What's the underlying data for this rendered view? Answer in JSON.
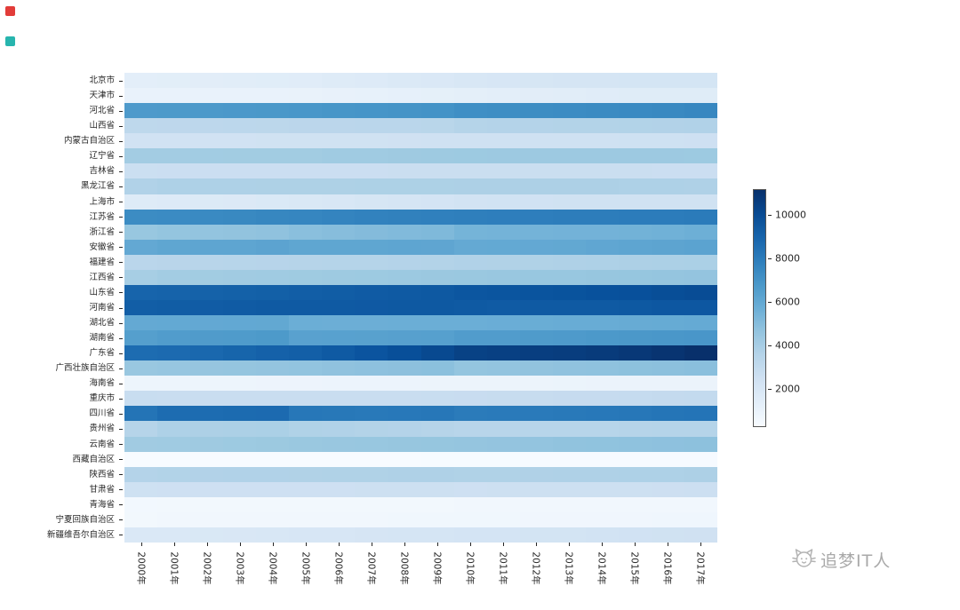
{
  "page": {
    "background": "#ffffff",
    "decorations": {
      "red_square_color": "#e23c39",
      "teal_square_color": "#27b5ae"
    },
    "watermark": {
      "text": "追梦IT人",
      "color": "#a9a9a9"
    }
  },
  "chart_data": {
    "type": "heatmap",
    "title": "",
    "xlabel": "",
    "ylabel": "",
    "colormap": "Blues",
    "grid": false,
    "legend_position": "right",
    "vmin": 262,
    "vmax": 11169,
    "colorbar_ticks": [
      2000,
      4000,
      6000,
      8000,
      10000
    ],
    "x_categories": [
      "2000年",
      "2001年",
      "2002年",
      "2003年",
      "2004年",
      "2005年",
      "2006年",
      "2007年",
      "2008年",
      "2009年",
      "2010年",
      "2011年",
      "2012年",
      "2013年",
      "2014年",
      "2015年",
      "2016年",
      "2017年"
    ],
    "y_categories": [
      "北京市",
      "天津市",
      "河北省",
      "山西省",
      "内蒙古自治区",
      "辽宁省",
      "吉林省",
      "黑龙江省",
      "上海市",
      "江苏省",
      "浙江省",
      "安徽省",
      "福建省",
      "江西省",
      "山东省",
      "河南省",
      "湖北省",
      "湖南省",
      "广东省",
      "广西壮族自治区",
      "海南省",
      "重庆市",
      "四川省",
      "贵州省",
      "云南省",
      "西藏自治区",
      "陕西省",
      "甘肃省",
      "青海省",
      "宁夏回族自治区",
      "新疆维吾尔自治区"
    ],
    "values": [
      [
        1364,
        1385,
        1423,
        1456,
        1493,
        1538,
        1601,
        1676,
        1771,
        1860,
        1962,
        2019,
        2069,
        2115,
        2152,
        2171,
        2173,
        2171
      ],
      [
        1001,
        1004,
        1007,
        1011,
        1024,
        1043,
        1075,
        1115,
        1176,
        1228,
        1299,
        1355,
        1413,
        1472,
        1517,
        1547,
        1562,
        1557
      ],
      [
        6674,
        6699,
        6735,
        6769,
        6809,
        6851,
        6898,
        6943,
        6989,
        7034,
        7194,
        7241,
        7288,
        7333,
        7384,
        7425,
        7470,
        7520
      ],
      [
        3247,
        3272,
        3294,
        3314,
        3335,
        3355,
        3375,
        3393,
        3411,
        3427,
        3574,
        3593,
        3611,
        3630,
        3648,
        3664,
        3682,
        3702
      ],
      [
        2372,
        2377,
        2384,
        2386,
        2393,
        2403,
        2415,
        2429,
        2444,
        2458,
        2472,
        2482,
        2490,
        2498,
        2505,
        2511,
        2520,
        2529
      ],
      [
        4184,
        4194,
        4203,
        4210,
        4217,
        4221,
        4271,
        4298,
        4315,
        4341,
        4375,
        4383,
        4389,
        4390,
        4391,
        4382,
        4378,
        4369
      ],
      [
        2682,
        2691,
        2699,
        2704,
        2709,
        2716,
        2723,
        2730,
        2734,
        2740,
        2747,
        2749,
        2750,
        2751,
        2752,
        2753,
        2733,
        2717
      ],
      [
        3689,
        3811,
        3813,
        3815,
        3817,
        3820,
        3823,
        3824,
        3825,
        3826,
        3833,
        3834,
        3834,
        3835,
        3833,
        3812,
        3799,
        3789
      ],
      [
        1609,
        1668,
        1713,
        1766,
        1835,
        1890,
        1964,
        2064,
        2141,
        2210,
        2303,
        2347,
        2380,
        2415,
        2426,
        2415,
        2420,
        2418
      ],
      [
        7327,
        7359,
        7406,
        7458,
        7523,
        7588,
        7656,
        7723,
        7762,
        7810,
        7869,
        7899,
        7920,
        7939,
        7960,
        7976,
        7999,
        8029
      ],
      [
        4501,
        4613,
        4647,
        4680,
        4720,
        4898,
        4980,
        5060,
        5120,
        5180,
        5447,
        5463,
        5477,
        5498,
        5508,
        5539,
        5590,
        5657
      ],
      [
        5986,
        6128,
        6144,
        6163,
        6228,
        6120,
        6110,
        6118,
        6135,
        6131,
        5957,
        5968,
        5988,
        6030,
        6083,
        6144,
        6196,
        6255
      ],
      [
        3410,
        3445,
        3466,
        3488,
        3511,
        3535,
        3558,
        3581,
        3604,
        3627,
        3693,
        3720,
        3748,
        3774,
        3806,
        3839,
        3874,
        3911
      ],
      [
        4049,
        4186,
        4222,
        4254,
        4284,
        4311,
        4339,
        4368,
        4400,
        4432,
        4462,
        4488,
        4504,
        4522,
        4542,
        4566,
        4592,
        4622
      ],
      [
        8998,
        9041,
        9082,
        9125,
        9180,
        9248,
        9309,
        9367,
        9417,
        9470,
        9588,
        9637,
        9685,
        9733,
        9789,
        9847,
        9947,
        10006
      ],
      [
        9256,
        9310,
        9340,
        9380,
        9410,
        9430,
        9440,
        9450,
        9460,
        9470,
        9405,
        9388,
        9406,
        9413,
        9436,
        9480,
        9532,
        9559
      ],
      [
        5960,
        5975,
        5988,
        6002,
        6016,
        5710,
        5693,
        5699,
        5711,
        5720,
        5728,
        5758,
        5779,
        5799,
        5816,
        5852,
        5885,
        5902
      ],
      [
        6440,
        6596,
        6629,
        6663,
        6698,
        6326,
        6342,
        6355,
        6380,
        6406,
        6570,
        6596,
        6639,
        6691,
        6737,
        6783,
        6822,
        6860
      ],
      [
        8650,
        8733,
        8842,
        8963,
        9111,
        9194,
        9442,
        9660,
        9893,
        10130,
        10441,
        10505,
        10594,
        10644,
        10724,
        10849,
        10999,
        11169
      ],
      [
        4489,
        4536,
        4572,
        4603,
        4631,
        4660,
        4719,
        4768,
        4816,
        4856,
        4610,
        4645,
        4682,
        4719,
        4754,
        4796,
        4838,
        4885
      ],
      [
        787,
        796,
        803,
        811,
        818,
        828,
        836,
        845,
        854,
        864,
        869,
        877,
        887,
        895,
        903,
        911,
        917,
        926
      ],
      [
        2849,
        2829,
        2814,
        2803,
        2793,
        2798,
        2808,
        2816,
        2839,
        2859,
        2885,
        2919,
        2945,
        2970,
        2991,
        3017,
        3048,
        3075
      ],
      [
        8329,
        8640,
        8673,
        8700,
        8725,
        8212,
        8169,
        8127,
        8138,
        8185,
        8045,
        8050,
        8076,
        8107,
        8140,
        8204,
        8262,
        8302
      ],
      [
        3525,
        3799,
        3837,
        3870,
        3904,
        3730,
        3690,
        3632,
        3596,
        3537,
        3479,
        3469,
        3484,
        3502,
        3508,
        3530,
        3555,
        3580
      ],
      [
        4241,
        4287,
        4333,
        4376,
        4415,
        4450,
        4483,
        4514,
        4543,
        4571,
        4602,
        4631,
        4659,
        4687,
        4714,
        4742,
        4771,
        4801
      ],
      [
        262,
        263,
        267,
        270,
        274,
        277,
        281,
        284,
        287,
        290,
        300,
        303,
        308,
        312,
        318,
        324,
        331,
        337
      ],
      [
        3605,
        3659,
        3674,
        3690,
        3705,
        3720,
        3735,
        3748,
        3762,
        3772,
        3733,
        3743,
        3753,
        3764,
        3775,
        3793,
        3813,
        3835
      ],
      [
        2515,
        2523,
        2530,
        2538,
        2546,
        2554,
        2561,
        2567,
        2573,
        2579,
        2560,
        2564,
        2578,
        2582,
        2591,
        2600,
        2610,
        2626
      ],
      [
        517,
        523,
        529,
        534,
        539,
        543,
        548,
        552,
        554,
        557,
        563,
        568,
        573,
        578,
        583,
        588,
        593,
        598
      ],
      [
        554,
        563,
        572,
        580,
        588,
        596,
        604,
        610,
        618,
        625,
        633,
        639,
        647,
        654,
        662,
        668,
        675,
        682
      ],
      [
        1849,
        1876,
        1905,
        1934,
        1963,
        2010,
        2050,
        2095,
        2131,
        2159,
        2185,
        2209,
        2233,
        2264,
        2298,
        2360,
        2398,
        2445
      ]
    ]
  }
}
